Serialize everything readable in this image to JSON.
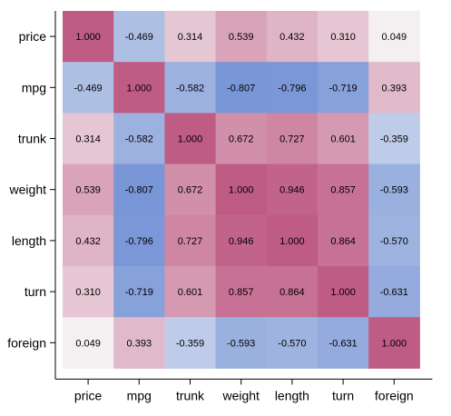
{
  "chart_data": {
    "type": "heatmap",
    "title": "",
    "xlabel": "",
    "ylabel": "",
    "variables": [
      "price",
      "mpg",
      "trunk",
      "weight",
      "length",
      "turn",
      "foreign"
    ],
    "value_labels": [
      [
        "1.000",
        "-0.469",
        "0.314",
        "0.539",
        "0.432",
        "0.310",
        "0.049"
      ],
      [
        "-0.469",
        "1.000",
        "-0.582",
        "-0.807",
        "-0.796",
        "-0.719",
        "0.393"
      ],
      [
        "0.314",
        "-0.582",
        "1.000",
        "0.672",
        "0.727",
        "0.601",
        "-0.359"
      ],
      [
        "0.539",
        "-0.807",
        "0.672",
        "1.000",
        "0.946",
        "0.857",
        "-0.593"
      ],
      [
        "0.432",
        "-0.796",
        "0.727",
        "0.946",
        "1.000",
        "0.864",
        "-0.570"
      ],
      [
        "0.310",
        "-0.719",
        "0.601",
        "0.857",
        "0.864",
        "1.000",
        "-0.631"
      ],
      [
        "0.049",
        "0.393",
        "-0.359",
        "-0.593",
        "-0.570",
        "-0.631",
        "1.000"
      ]
    ],
    "values": [
      [
        1.0,
        -0.469,
        0.314,
        0.539,
        0.432,
        0.31,
        0.049
      ],
      [
        -0.469,
        1.0,
        -0.582,
        -0.807,
        -0.796,
        -0.719,
        0.393
      ],
      [
        0.314,
        -0.582,
        1.0,
        0.672,
        0.727,
        0.601,
        -0.359
      ],
      [
        0.539,
        -0.807,
        0.672,
        1.0,
        0.946,
        0.857,
        -0.593
      ],
      [
        0.432,
        -0.796,
        0.727,
        0.946,
        1.0,
        0.864,
        -0.57
      ],
      [
        0.31,
        -0.719,
        0.601,
        0.857,
        0.864,
        1.0,
        -0.631
      ],
      [
        0.049,
        0.393,
        -0.359,
        -0.593,
        -0.57,
        -0.631,
        1.0
      ]
    ],
    "color_scale": {
      "negative": "#5b7fcf",
      "neutral": "#f7f7f7",
      "positive": "#bf5c84",
      "min": -1,
      "max": 1
    },
    "grid": false,
    "legend": "none"
  }
}
